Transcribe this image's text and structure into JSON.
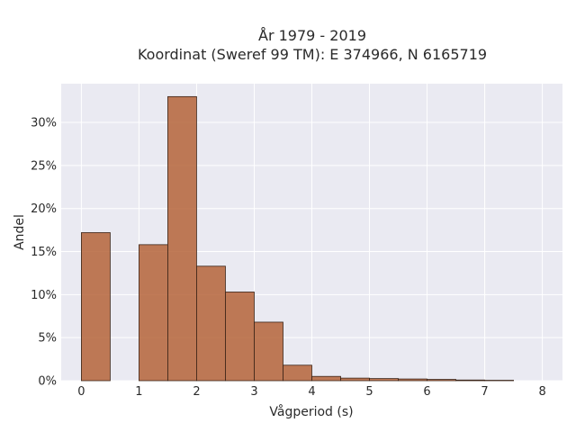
{
  "chart_data": {
    "type": "bar",
    "title_lines": [
      "År 1979 - 2019",
      "Koordinat (Sweref 99 TM): E 374966, N 6165719"
    ],
    "xlabel": "Vågperiod (s)",
    "ylabel": "Andel",
    "xlim": [
      -0.35,
      8.35
    ],
    "ylim": [
      0,
      34.5
    ],
    "xticks": [
      0,
      1,
      2,
      3,
      4,
      5,
      6,
      7,
      8
    ],
    "yticks": [
      0,
      5,
      10,
      15,
      20,
      25,
      30
    ],
    "ytick_labels": [
      "0%",
      "5%",
      "10%",
      "15%",
      "20%",
      "25%",
      "30%"
    ],
    "grid": true,
    "bin_width": 0.5,
    "bins": [
      {
        "start": 0.0,
        "value": 17.2
      },
      {
        "start": 1.0,
        "value": 15.8
      },
      {
        "start": 1.5,
        "value": 33.0
      },
      {
        "start": 2.0,
        "value": 13.3
      },
      {
        "start": 2.5,
        "value": 10.3
      },
      {
        "start": 3.0,
        "value": 6.8
      },
      {
        "start": 3.5,
        "value": 1.8
      },
      {
        "start": 4.0,
        "value": 0.5
      },
      {
        "start": 4.5,
        "value": 0.3
      },
      {
        "start": 5.0,
        "value": 0.25
      },
      {
        "start": 5.5,
        "value": 0.2
      },
      {
        "start": 6.0,
        "value": 0.15
      },
      {
        "start": 6.5,
        "value": 0.08
      },
      {
        "start": 7.0,
        "value": 0.05
      }
    ],
    "colors": {
      "bar": "#b5643a",
      "plot_bg": "#eaeaf2",
      "edge": "#3a2418"
    }
  }
}
